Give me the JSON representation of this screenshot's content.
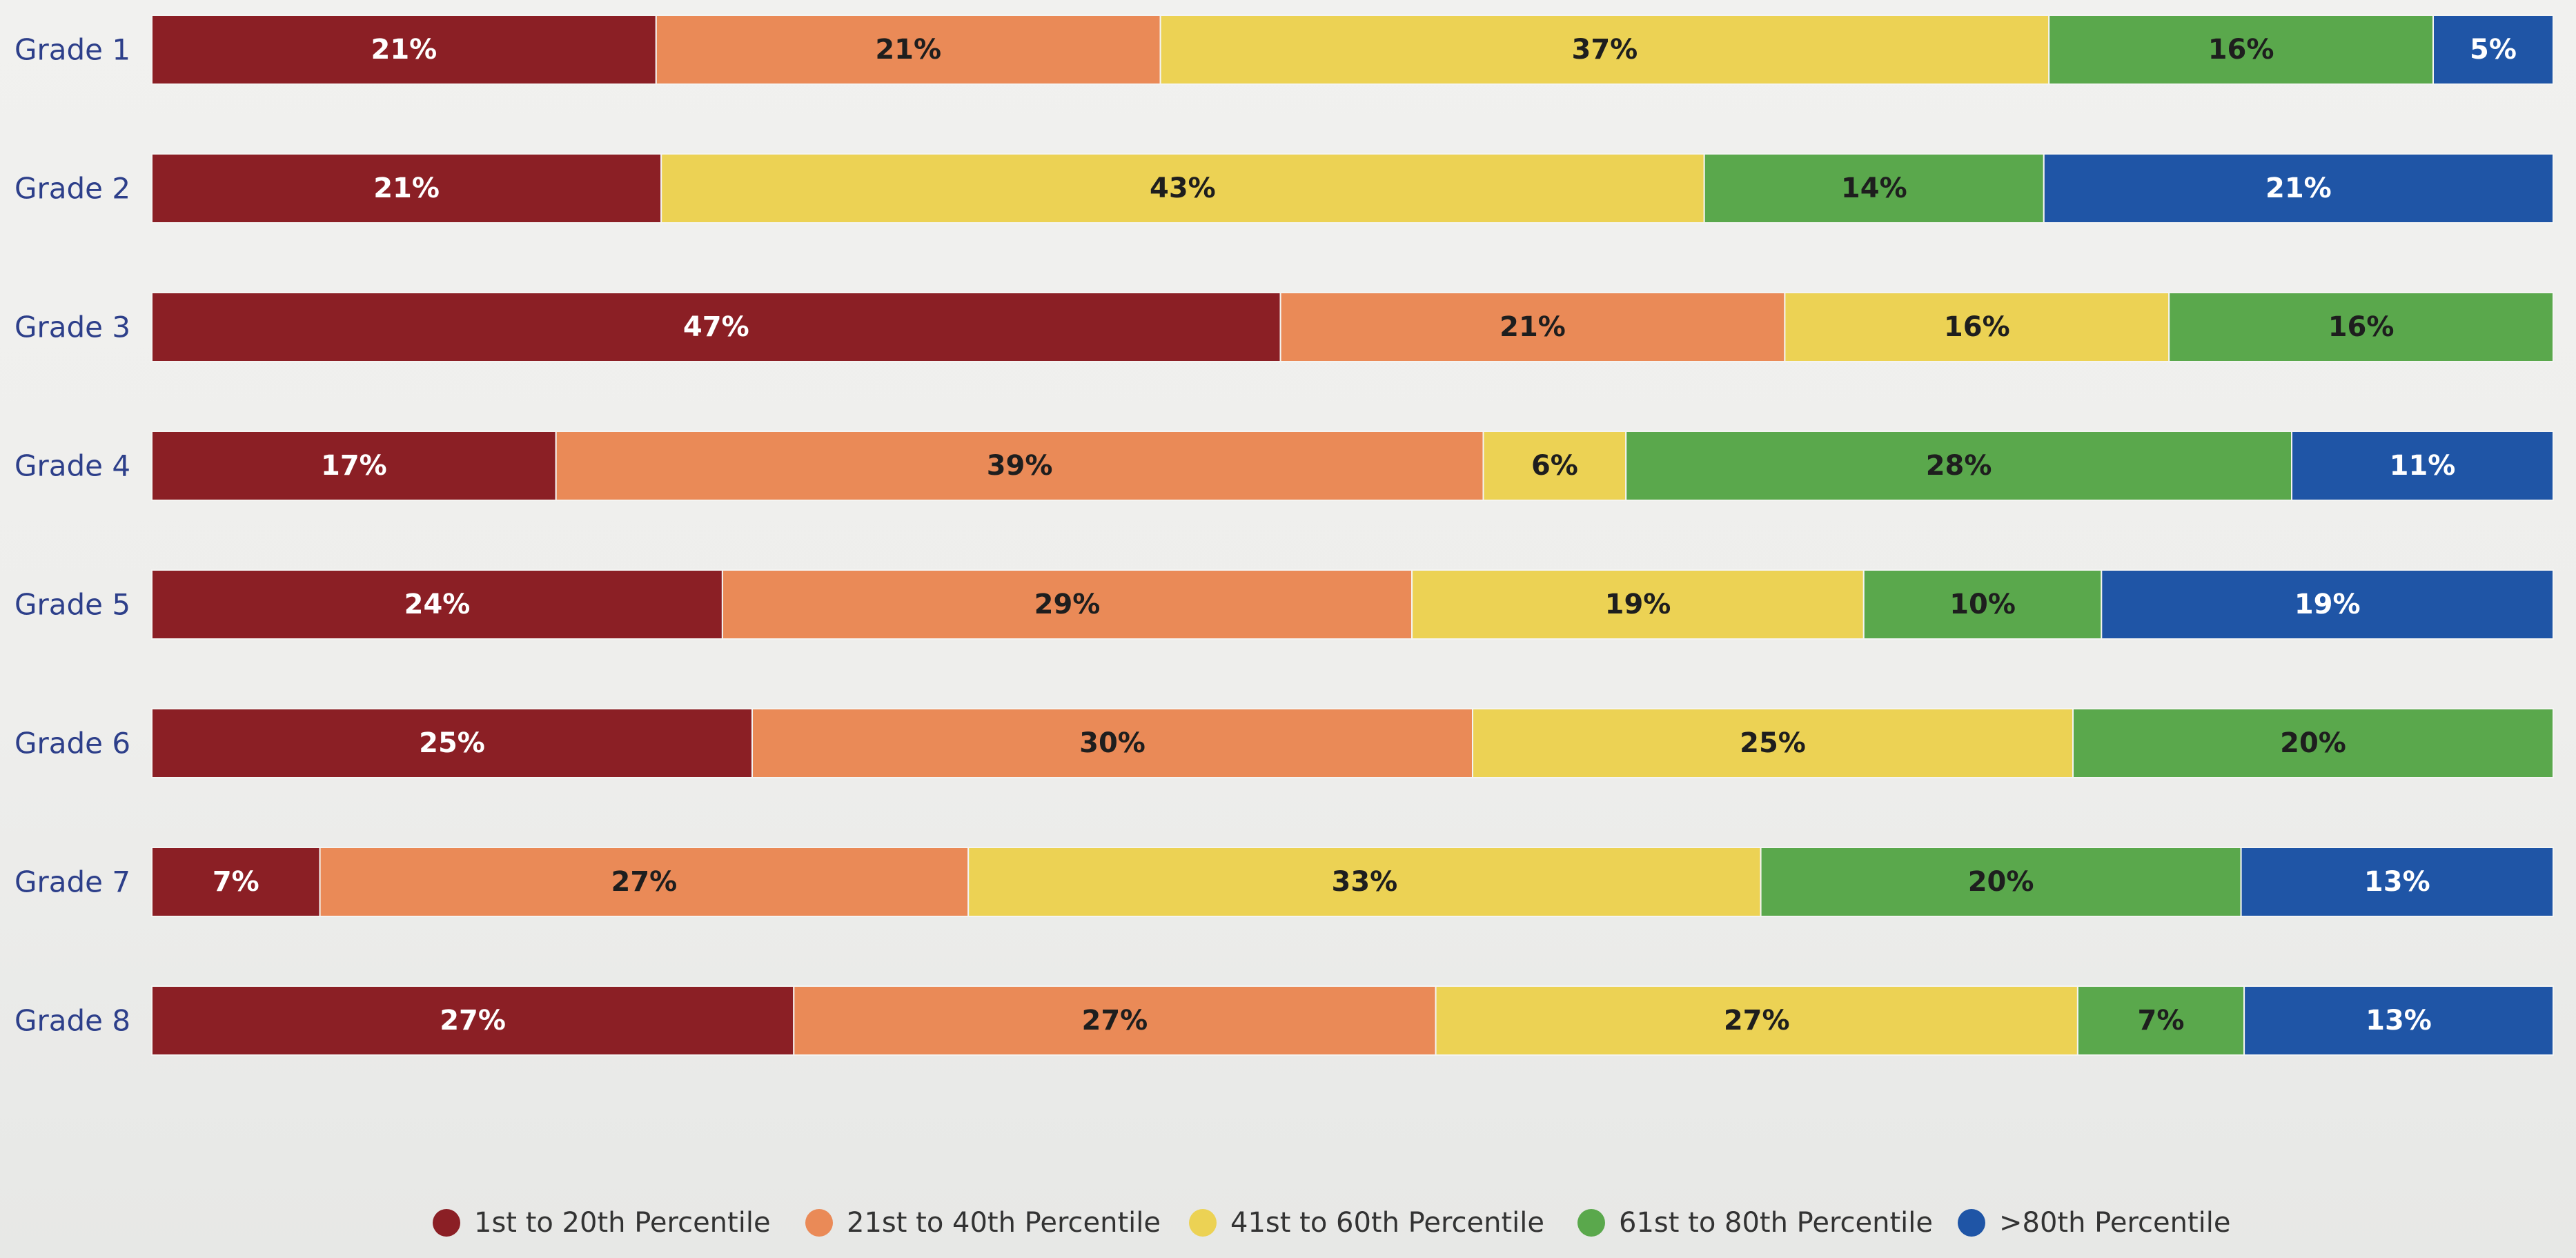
{
  "chart_data": {
    "type": "bar",
    "orientation": "horizontal",
    "stacked": true,
    "title": "",
    "xlabel": "",
    "ylabel": "",
    "xlim": [
      0,
      100
    ],
    "grid": false,
    "legend_position": "bottom",
    "categories": [
      "Grade 1",
      "Grade 2",
      "Grade 3",
      "Grade 4",
      "Grade 5",
      "Grade 6",
      "Grade 7",
      "Grade 8"
    ],
    "series": [
      {
        "name": "1st to 20th Percentile",
        "color": "#8b1f25",
        "label_color": "#ffffff",
        "values": [
          21,
          21,
          47,
          17,
          24,
          25,
          7,
          27
        ]
      },
      {
        "name": "21st to 40th Percentile",
        "color": "#ea8a57",
        "label_color": "#1e1e1e",
        "values": [
          21,
          0,
          21,
          39,
          29,
          30,
          27,
          27
        ]
      },
      {
        "name": "41st to 60th Percentile",
        "color": "#ecd254",
        "label_color": "#1e1e1e",
        "values": [
          37,
          43,
          16,
          6,
          19,
          25,
          33,
          27
        ]
      },
      {
        "name": "61st to 80th Percentile",
        "color": "#5aa84c",
        "label_color": "#1e1e1e",
        "values": [
          16,
          14,
          16,
          28,
          10,
          20,
          20,
          7
        ]
      },
      {
        "name": ">80th Percentile",
        "color": "#1f55a6",
        "label_color": "#ffffff",
        "values": [
          5,
          21,
          0,
          11,
          19,
          0,
          13,
          13
        ]
      }
    ]
  }
}
